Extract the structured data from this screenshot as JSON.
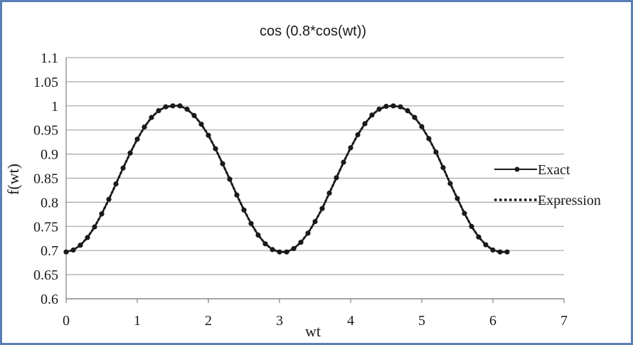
{
  "chart_data": {
    "type": "line",
    "title": "cos (0.8*cos(wt))",
    "xlabel": "wt",
    "ylabel": "f(wt)",
    "xlim": [
      0,
      7
    ],
    "ylim": [
      0.6,
      1.1
    ],
    "x_ticks": [
      "0",
      "1",
      "2",
      "3",
      "4",
      "5",
      "6",
      "7"
    ],
    "y_ticks": [
      "0.6",
      "0.65",
      "0.7",
      "0.75",
      "0.8",
      "0.85",
      "0.9",
      "0.95",
      "1",
      "1.05",
      "1.1"
    ],
    "grid": "horizontal",
    "legend_position": "right",
    "colors": {
      "series": "#1a1a1a",
      "grid": "#a6a6a6",
      "axis": "#808080",
      "frame": "#5a7fb4"
    },
    "series": [
      {
        "name": "Exact",
        "style": "solid line with circle markers",
        "x": [
          0,
          0.1,
          0.2,
          0.3,
          0.4,
          0.5,
          0.6,
          0.7,
          0.8,
          0.9,
          1.0,
          1.1,
          1.2,
          1.3,
          1.4,
          1.5,
          1.6,
          1.7,
          1.8,
          1.9,
          2.0,
          2.1,
          2.2,
          2.3,
          2.4,
          2.5,
          2.6,
          2.7,
          2.8,
          2.9,
          3.0,
          3.1,
          3.2,
          3.3,
          3.4,
          3.5,
          3.6,
          3.7,
          3.8,
          3.9,
          4.0,
          4.1,
          4.2,
          4.3,
          4.4,
          4.5,
          4.6,
          4.7,
          4.8,
          4.9,
          5.0,
          5.1,
          5.2,
          5.3,
          5.4,
          5.5,
          5.6,
          5.7,
          5.8,
          5.9,
          6.0,
          6.1,
          6.2
        ],
        "y": [
          0.697,
          0.701,
          0.711,
          0.727,
          0.749,
          0.776,
          0.806,
          0.838,
          0.871,
          0.902,
          0.931,
          0.956,
          0.976,
          0.99,
          0.998,
          1.0,
          1.0,
          0.993,
          0.98,
          0.962,
          0.939,
          0.911,
          0.88,
          0.848,
          0.815,
          0.784,
          0.756,
          0.732,
          0.714,
          0.702,
          0.697,
          0.697,
          0.704,
          0.717,
          0.736,
          0.76,
          0.787,
          0.819,
          0.851,
          0.883,
          0.913,
          0.94,
          0.963,
          0.981,
          0.993,
          0.999,
          1.0,
          0.998,
          0.99,
          0.976,
          0.957,
          0.932,
          0.904,
          0.872,
          0.839,
          0.808,
          0.777,
          0.75,
          0.728,
          0.712,
          0.701,
          0.697,
          0.697
        ]
      },
      {
        "name": "Expression",
        "style": "dotted line",
        "x": [
          0,
          0.1,
          0.2,
          0.3,
          0.4,
          0.5,
          0.6,
          0.7,
          0.8,
          0.9,
          1.0,
          1.1,
          1.2,
          1.3,
          1.4,
          1.5,
          1.6,
          1.7,
          1.8,
          1.9,
          2.0,
          2.1,
          2.2,
          2.3,
          2.4,
          2.5,
          2.6,
          2.7,
          2.8,
          2.9,
          3.0,
          3.1,
          3.2,
          3.3,
          3.4,
          3.5,
          3.6,
          3.7,
          3.8,
          3.9,
          4.0,
          4.1,
          4.2,
          4.3,
          4.4,
          4.5,
          4.6,
          4.7,
          4.8,
          4.9,
          5.0,
          5.1,
          5.2,
          5.3,
          5.4,
          5.5,
          5.6,
          5.7,
          5.8,
          5.9,
          6.0,
          6.1,
          6.2
        ],
        "y": [
          0.697,
          0.701,
          0.711,
          0.727,
          0.749,
          0.776,
          0.806,
          0.838,
          0.871,
          0.902,
          0.931,
          0.956,
          0.976,
          0.99,
          0.998,
          1.0,
          1.0,
          0.993,
          0.98,
          0.962,
          0.939,
          0.911,
          0.88,
          0.848,
          0.815,
          0.784,
          0.756,
          0.732,
          0.714,
          0.702,
          0.697,
          0.697,
          0.704,
          0.717,
          0.736,
          0.76,
          0.787,
          0.819,
          0.851,
          0.883,
          0.913,
          0.94,
          0.963,
          0.981,
          0.993,
          0.999,
          1.0,
          0.998,
          0.99,
          0.976,
          0.957,
          0.932,
          0.904,
          0.872,
          0.839,
          0.808,
          0.777,
          0.75,
          0.728,
          0.712,
          0.701,
          0.697,
          0.697
        ]
      }
    ]
  }
}
